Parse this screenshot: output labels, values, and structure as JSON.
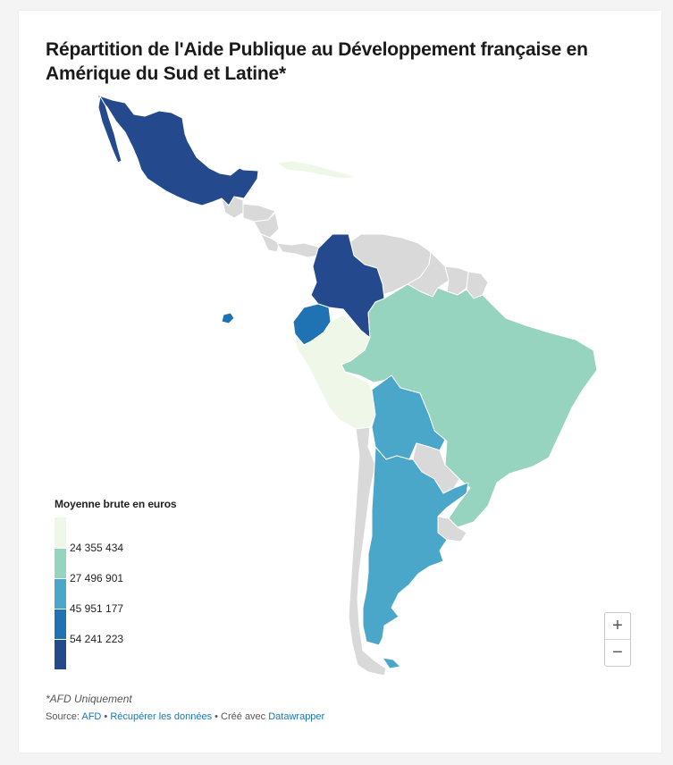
{
  "title": "Répartition de l'Aide Publique au Développement française en Amérique du Sud et Latine*",
  "colors": {
    "no_data": "#d9d9d9",
    "border": "#ffffff",
    "class_1": "#eff7e8",
    "class_2": "#96d4bf",
    "class_3": "#4aa7ca",
    "class_4": "#1f73b3",
    "class_5": "#244a8d"
  },
  "legend": {
    "title": "Moyenne brute en euros",
    "breaks": [
      "24 355 434",
      "27 496 901",
      "45 951 177",
      "54 241 223"
    ],
    "classes": [
      "class_1",
      "class_2",
      "class_3",
      "class_4",
      "class_5"
    ]
  },
  "map_data": {
    "type": "choropleth",
    "countries": [
      {
        "name": "Mexique",
        "class": "class_5"
      },
      {
        "name": "Colombie",
        "class": "class_5"
      },
      {
        "name": "Équateur",
        "class": "class_4"
      },
      {
        "name": "Bolivie",
        "class": "class_3"
      },
      {
        "name": "Argentine",
        "class": "class_3"
      },
      {
        "name": "Brésil",
        "class": "class_2"
      },
      {
        "name": "Pérou",
        "class": "class_1"
      },
      {
        "name": "Cuba",
        "class": "class_1"
      },
      {
        "name": "Guatemala",
        "class": "no_data"
      },
      {
        "name": "Honduras",
        "class": "no_data"
      },
      {
        "name": "Nicaragua",
        "class": "no_data"
      },
      {
        "name": "Costa Rica",
        "class": "no_data"
      },
      {
        "name": "Panama",
        "class": "no_data"
      },
      {
        "name": "Venezuela",
        "class": "no_data"
      },
      {
        "name": "Guyana",
        "class": "no_data"
      },
      {
        "name": "Suriname",
        "class": "no_data"
      },
      {
        "name": "Guyane",
        "class": "no_data"
      },
      {
        "name": "Paraguay",
        "class": "no_data"
      },
      {
        "name": "Uruguay",
        "class": "no_data"
      },
      {
        "name": "Chili",
        "class": "no_data"
      }
    ]
  },
  "zoom": {
    "in_label": "+",
    "out_label": "−"
  },
  "note": "*AFD Uniquement",
  "source": {
    "prefix": "Source: ",
    "source_link": "AFD",
    "sep1": " • ",
    "data_link": "Récupérer les données",
    "sep2": " • Créé avec ",
    "tool_link": "Datawrapper"
  }
}
